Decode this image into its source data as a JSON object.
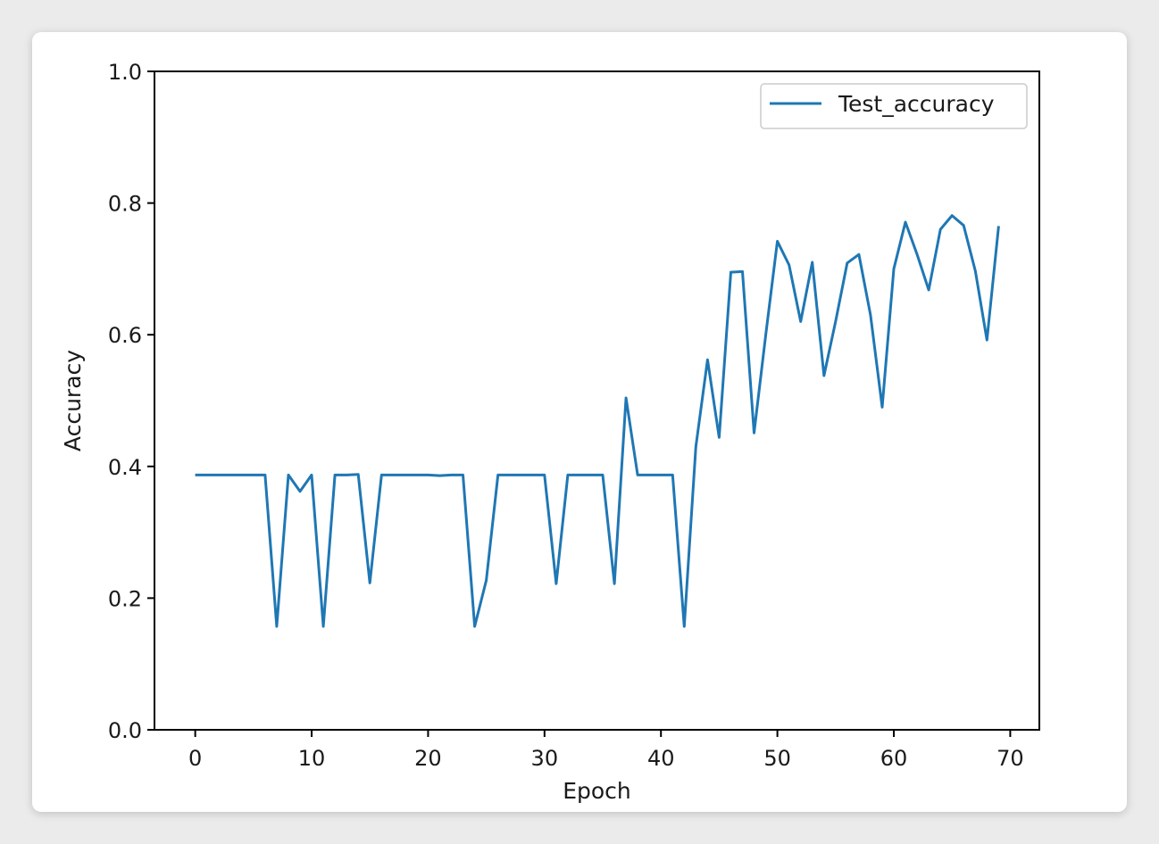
{
  "chart_data": {
    "type": "line",
    "title": "",
    "xlabel": "Epoch",
    "ylabel": "Accuracy",
    "xlim": [
      -3.5,
      72.5
    ],
    "ylim": [
      0.0,
      1.0
    ],
    "xticks": [
      0,
      10,
      20,
      30,
      40,
      50,
      60,
      70
    ],
    "yticks": [
      0.0,
      0.2,
      0.4,
      0.6,
      0.8,
      1.0
    ],
    "xtick_labels": [
      "0",
      "10",
      "20",
      "30",
      "40",
      "50",
      "60",
      "70"
    ],
    "ytick_labels": [
      "0.0",
      "0.2",
      "0.4",
      "0.6",
      "0.8",
      "1.0"
    ],
    "grid": false,
    "legend_position": "top-right",
    "series": [
      {
        "name": "Test_accuracy",
        "color": "#1f77b4",
        "x": [
          0,
          1,
          2,
          3,
          4,
          5,
          6,
          7,
          8,
          9,
          10,
          11,
          12,
          13,
          14,
          15,
          16,
          17,
          18,
          19,
          20,
          21,
          22,
          23,
          24,
          25,
          26,
          27,
          28,
          29,
          30,
          31,
          32,
          33,
          34,
          35,
          36,
          37,
          38,
          39,
          40,
          41,
          42,
          43,
          44,
          45,
          46,
          47,
          48,
          49,
          50,
          51,
          52,
          53,
          54,
          55,
          56,
          57,
          58,
          59,
          60,
          61,
          62,
          63,
          64,
          65,
          66,
          67,
          68,
          69
        ],
        "values": [
          0.387,
          0.387,
          0.387,
          0.387,
          0.387,
          0.387,
          0.387,
          0.157,
          0.387,
          0.362,
          0.387,
          0.157,
          0.387,
          0.387,
          0.388,
          0.223,
          0.387,
          0.387,
          0.387,
          0.387,
          0.387,
          0.386,
          0.387,
          0.387,
          0.157,
          0.227,
          0.387,
          0.387,
          0.387,
          0.387,
          0.387,
          0.222,
          0.387,
          0.387,
          0.387,
          0.387,
          0.222,
          0.504,
          0.387,
          0.387,
          0.387,
          0.387,
          0.157,
          0.43,
          0.562,
          0.444,
          0.695,
          0.696,
          0.451,
          0.6,
          0.742,
          0.706,
          0.62,
          0.71,
          0.538,
          0.62,
          0.709,
          0.722,
          0.63,
          0.49,
          0.7,
          0.771,
          0.722,
          0.668,
          0.76,
          0.781,
          0.766,
          0.697,
          0.592,
          0.765
        ]
      }
    ]
  }
}
